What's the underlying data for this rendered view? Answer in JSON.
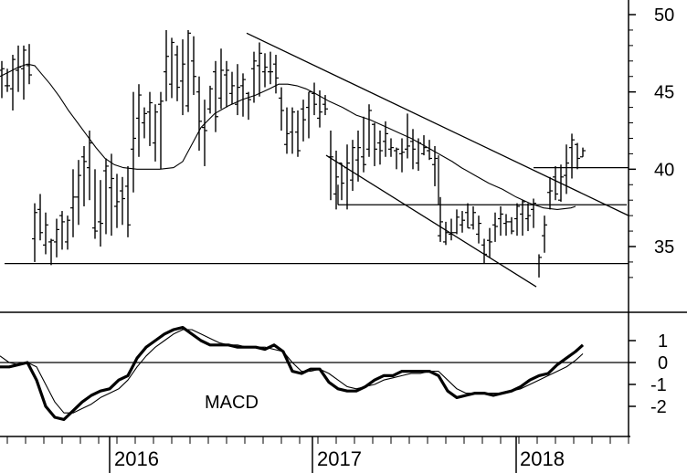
{
  "chart_data": [
    {
      "type": "ohlc",
      "panel": "price",
      "title": "",
      "ylim": [
        31,
        51
      ],
      "y_ticks": [
        35,
        40,
        45,
        50
      ],
      "x_ticks": [
        "2016",
        "2017",
        "2018"
      ],
      "moving_average": {
        "x": [
          0,
          10,
          20,
          30,
          38,
          45,
          55,
          65,
          75,
          85,
          95,
          105,
          115,
          125,
          135,
          150,
          160,
          175,
          190,
          200,
          210,
          220,
          235,
          250,
          265,
          280,
          295,
          305,
          315,
          325,
          335,
          345,
          360,
          375,
          390,
          405,
          420,
          435,
          450,
          465,
          480,
          495,
          505,
          520,
          535,
          550,
          565,
          580,
          595,
          610,
          625,
          630
        ],
        "y": [
          46.0,
          46.3,
          46.6,
          46.8,
          46.7,
          46.2,
          45.5,
          44.7,
          43.8,
          43.0,
          42.2,
          41.4,
          40.7,
          40.3,
          40.1,
          40.0,
          40.0,
          40.0,
          40.1,
          40.5,
          41.6,
          42.7,
          43.6,
          44.1,
          44.5,
          44.8,
          45.2,
          45.5,
          45.5,
          45.4,
          45.2,
          44.9,
          44.4,
          44.0,
          43.5,
          43.2,
          42.8,
          42.4,
          42.0,
          41.5,
          41.0,
          40.5,
          40.1,
          39.6,
          39.1,
          38.7,
          38.2,
          37.8,
          37.5,
          37.4,
          37.5,
          37.6
        ]
      },
      "bars": {
        "x": [
          2,
          8,
          14,
          20,
          26,
          32,
          38,
          44,
          50,
          56,
          62,
          68,
          74,
          80,
          86,
          92,
          98,
          104,
          110,
          116,
          122,
          128,
          134,
          140,
          146,
          152,
          158,
          164,
          170,
          176,
          182,
          188,
          194,
          200,
          206,
          212,
          218,
          224,
          230,
          236,
          242,
          248,
          254,
          260,
          266,
          272,
          278,
          284,
          290,
          296,
          302,
          308,
          314,
          320,
          326,
          332,
          338,
          344,
          350,
          356,
          362,
          368,
          374,
          380,
          386,
          392,
          398,
          404,
          410,
          416,
          422,
          428,
          434,
          440,
          446,
          452,
          458,
          464,
          470,
          476,
          482,
          488,
          494,
          500,
          506,
          512,
          518,
          524,
          530,
          536,
          542,
          548,
          554,
          560,
          566,
          572,
          578,
          584,
          590,
          596,
          602,
          608,
          614,
          620,
          626,
          632,
          638
        ],
        "high": [
          47.0,
          46.5,
          47.4,
          48.0,
          48.0,
          48.1,
          37.8,
          38.4,
          37.2,
          35.5,
          36.8,
          37.3,
          37.0,
          40.0,
          40.6,
          41.5,
          42.5,
          40.0,
          39.3,
          40.7,
          41.0,
          39.7,
          39.5,
          40.2,
          45.0,
          45.5,
          44.0,
          45.0,
          44.2,
          45.0,
          49.0,
          48.5,
          48.0,
          48.4,
          49.0,
          48.6,
          46.0,
          44.5,
          45.4,
          47.0,
          47.8,
          47.0,
          46.3,
          46.8,
          46.2,
          45.0,
          47.6,
          48.2,
          47.5,
          47.6,
          47.4,
          45.3,
          44.0,
          44.0,
          43.8,
          44.5,
          45.0,
          45.6,
          45.1,
          44.8,
          42.5,
          41.2,
          40.4,
          41.6,
          41.9,
          42.5,
          43.4,
          44.2,
          43.0,
          42.5,
          43.1,
          42.0,
          41.4,
          42.0,
          43.6,
          42.6,
          42.0,
          42.2,
          41.9,
          41.5,
          38.2,
          36.6,
          36.8,
          37.4,
          37.3,
          37.8,
          37.6,
          37.0,
          35.5,
          36.2,
          37.2,
          37.6,
          37.1,
          36.9,
          37.8,
          38.0,
          37.8,
          38.1,
          34.5,
          37.0,
          39.5,
          40.2,
          40.3,
          41.6,
          42.3,
          41.7,
          41.4
        ],
        "low": [
          44.6,
          45.0,
          43.8,
          45.0,
          44.5,
          45.5,
          34.0,
          35.4,
          34.5,
          33.8,
          34.3,
          34.8,
          34.8,
          35.6,
          36.4,
          37.6,
          38.0,
          35.5,
          35.0,
          35.8,
          35.7,
          36.2,
          36.4,
          35.6,
          38.5,
          40.8,
          42.0,
          41.5,
          40.5,
          40.0,
          44.4,
          44.6,
          44.4,
          43.5,
          43.7,
          44.8,
          41.2,
          40.2,
          43.6,
          42.4,
          43.9,
          44.0,
          44.2,
          43.5,
          43.4,
          43.2,
          44.3,
          44.7,
          45.3,
          45.5,
          44.9,
          42.5,
          41.0,
          41.0,
          40.8,
          41.8,
          42.0,
          43.5,
          42.7,
          43.5,
          38.0,
          37.4,
          38.0,
          37.4,
          38.6,
          39.2,
          39.8,
          40.8,
          40.2,
          40.3,
          40.8,
          40.8,
          40.0,
          39.8,
          40.7,
          40.0,
          39.9,
          40.9,
          40.6,
          38.9,
          35.3,
          35.1,
          35.4,
          35.8,
          35.9,
          36.2,
          36.1,
          35.2,
          33.9,
          34.3,
          35.3,
          35.7,
          35.7,
          35.8,
          35.7,
          35.7,
          36.0,
          36.2,
          33.0,
          34.6,
          37.4,
          38.0,
          37.9,
          38.4,
          39.4,
          40.0,
          40.8
        ],
        "open": [
          46.4,
          45.4,
          45.2,
          46.4,
          46.5,
          46.7,
          35.5,
          37.4,
          35.1,
          35.3,
          35.3,
          37.0,
          35.3,
          37.5,
          38.2,
          40.8,
          40.1,
          36.2,
          36.6,
          39.9,
          38.8,
          37.6,
          38.6,
          38.9,
          41.3,
          43.3,
          43.0,
          43.7,
          41.7,
          44.2,
          46.3,
          45.5,
          47.4,
          45.7,
          44.1,
          47.0,
          45.0,
          42.7,
          43.9,
          46.3,
          44.6,
          46.1,
          44.9,
          44.2,
          45.4,
          44.9,
          46.5,
          46.7,
          46.3,
          46.3,
          46.8,
          44.6,
          41.6,
          42.4,
          42.4,
          43.9,
          44.0,
          44.9,
          43.3,
          44.2,
          40.8,
          38.4,
          40.4,
          40.1,
          39.3,
          40.6,
          40.8,
          41.3,
          42.9,
          41.7,
          41.8,
          41.3,
          41.2,
          41.0,
          41.3,
          41.8,
          40.4,
          41.0,
          41.2,
          40.3,
          35.7,
          35.3,
          35.8,
          35.9,
          36.4,
          37.2,
          36.4,
          35.8,
          35.1,
          35.4,
          36.4,
          36.8,
          36.5,
          36.6,
          36.8,
          37.1,
          36.8,
          37.4,
          33.9,
          35.7,
          38.5,
          39.5,
          38.0,
          39.6,
          41.4,
          41.6,
          40.8
        ],
        "close": [
          46.5,
          45.4,
          47.1,
          46.6,
          47.7,
          46.1,
          37.2,
          35.9,
          36.4,
          35.4,
          36.1,
          36.6,
          36.7,
          38.2,
          39.6,
          40.5,
          41.7,
          36.0,
          36.5,
          40.2,
          39.4,
          37.9,
          38.1,
          36.4,
          42.0,
          44.8,
          43.6,
          44.3,
          43.7,
          44.4,
          47.3,
          48.2,
          45.3,
          46.8,
          48.8,
          46.0,
          43.1,
          42.5,
          45.2,
          43.4,
          46.4,
          46.4,
          45.4,
          45.3,
          45.8,
          44.5,
          47.0,
          47.5,
          46.6,
          46.3,
          45.9,
          43.8,
          42.3,
          43.7,
          41.2,
          43.2,
          45.0,
          44.2,
          43.7,
          43.9,
          40.8,
          39.5,
          39.1,
          40.4,
          41.4,
          41.4,
          40.3,
          43.8,
          41.3,
          41.2,
          42.3,
          41.4,
          41.3,
          41.1,
          41.5,
          41.3,
          41.7,
          41.4,
          40.7,
          40.7,
          36.6,
          35.9,
          35.9,
          36.9,
          36.7,
          36.2,
          37.2,
          36.5,
          34.5,
          35.3,
          36.3,
          37.1,
          36.6,
          36.0,
          37.6,
          37.9,
          37.0,
          37.8,
          34.3,
          36.4,
          38.6,
          38.4,
          39.5,
          40.4,
          41.9,
          40.7,
          41.2
        ]
      },
      "annotations": [
        {
          "kind": "hline",
          "y": 33.9,
          "x": [
            5,
            688
          ]
        },
        {
          "kind": "line",
          "from": [
            270,
            48.8
          ],
          "to": [
            688,
            37.0
          ]
        },
        {
          "kind": "line",
          "from": [
            357,
            40.9
          ],
          "to": [
            587,
            32.4
          ]
        },
        {
          "kind": "hline",
          "y": 37.7,
          "x": [
            370,
            686
          ]
        },
        {
          "kind": "vline",
          "x": 370,
          "y": [
            37.7,
            39.0
          ]
        },
        {
          "kind": "vline",
          "x": 480,
          "y": [
            37.7,
            40.9
          ]
        },
        {
          "kind": "hline",
          "y": 40.1,
          "x": [
            584,
            688
          ]
        }
      ]
    },
    {
      "type": "line",
      "panel": "macd",
      "title": "MACD",
      "ylim": [
        -2.8,
        1.3
      ],
      "y_ticks": [
        "1",
        "0",
        "-1",
        "-2"
      ],
      "x_ticks": [
        "2016",
        "2017",
        "2018"
      ],
      "series": [
        {
          "x": [
            0,
            10,
            20,
            30,
            40,
            50,
            60,
            70,
            80,
            90,
            100,
            110,
            120,
            130,
            140,
            150,
            160,
            170,
            180,
            190,
            200,
            210,
            220,
            230,
            240,
            250,
            260,
            270,
            280,
            290,
            300,
            310,
            320,
            330,
            340,
            350,
            360,
            370,
            380,
            390,
            400,
            410,
            420,
            430,
            440,
            450,
            460,
            470,
            480,
            490,
            500,
            510,
            520,
            530,
            540,
            550,
            560,
            570,
            580,
            590,
            600,
            610,
            620,
            630,
            638
          ],
          "y": [
            -0.2,
            -0.2,
            -0.1,
            0.0,
            -0.8,
            -2.0,
            -2.5,
            -2.6,
            -2.2,
            -1.8,
            -1.5,
            -1.3,
            -1.2,
            -0.8,
            -0.6,
            0.2,
            0.7,
            1.0,
            1.3,
            1.5,
            1.6,
            1.3,
            1.0,
            0.8,
            0.8,
            0.8,
            0.7,
            0.7,
            0.7,
            0.6,
            0.8,
            0.5,
            -0.4,
            -0.5,
            -0.3,
            -0.3,
            -0.9,
            -1.2,
            -1.3,
            -1.3,
            -1.1,
            -0.8,
            -0.6,
            -0.6,
            -0.4,
            -0.4,
            -0.4,
            -0.4,
            -0.6,
            -1.3,
            -1.6,
            -1.5,
            -1.4,
            -1.4,
            -1.5,
            -1.4,
            -1.3,
            -1.1,
            -0.8,
            -0.6,
            -0.5,
            -0.1,
            0.2,
            0.5,
            0.8
          ]
        },
        {
          "x": [
            0,
            10,
            20,
            30,
            40,
            50,
            60,
            70,
            80,
            90,
            100,
            110,
            120,
            130,
            140,
            150,
            160,
            170,
            180,
            190,
            200,
            210,
            220,
            230,
            240,
            250,
            260,
            270,
            280,
            290,
            300,
            310,
            320,
            330,
            340,
            350,
            360,
            370,
            380,
            390,
            400,
            410,
            420,
            430,
            440,
            450,
            460,
            470,
            480,
            490,
            500,
            510,
            520,
            530,
            540,
            550,
            560,
            570,
            580,
            590,
            600,
            610,
            620,
            630,
            638
          ],
          "y": [
            0.3,
            0.0,
            -0.1,
            0.0,
            -0.2,
            -1.0,
            -1.8,
            -2.3,
            -2.3,
            -2.1,
            -1.9,
            -1.6,
            -1.4,
            -1.2,
            -0.8,
            -0.2,
            0.3,
            0.7,
            1.0,
            1.3,
            1.5,
            1.5,
            1.3,
            1.1,
            0.9,
            0.8,
            0.8,
            0.7,
            0.7,
            0.7,
            0.6,
            0.5,
            0.0,
            -0.4,
            -0.4,
            -0.3,
            -0.5,
            -0.8,
            -1.1,
            -1.2,
            -1.1,
            -1.0,
            -0.8,
            -0.7,
            -0.6,
            -0.5,
            -0.5,
            -0.4,
            -0.4,
            -0.8,
            -1.2,
            -1.4,
            -1.4,
            -1.4,
            -1.4,
            -1.4,
            -1.3,
            -1.2,
            -1.0,
            -0.8,
            -0.6,
            -0.4,
            -0.2,
            0.1,
            0.4
          ]
        }
      ],
      "zero_line": 0
    }
  ]
}
